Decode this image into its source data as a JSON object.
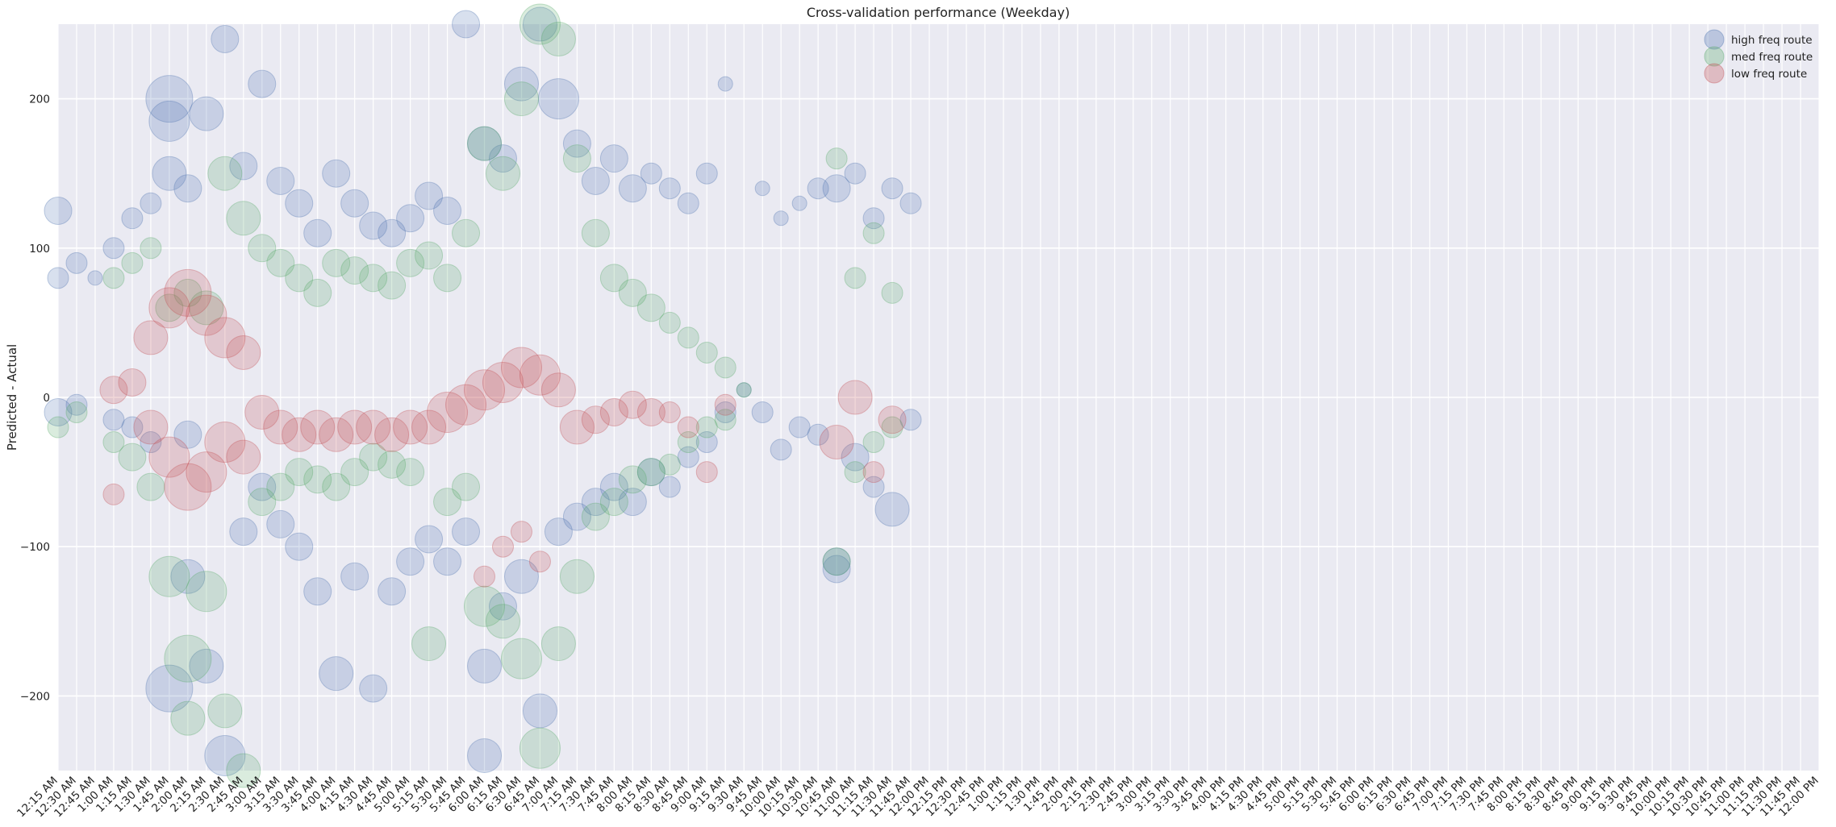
{
  "chart_data": {
    "type": "scatter",
    "title": "Cross-validation performance (Weekday)",
    "xlabel": "",
    "ylabel": "Predicted - Actual",
    "ylim": [
      -250,
      250
    ],
    "yticks": [
      -200,
      -100,
      0,
      100,
      200
    ],
    "grid": true,
    "legend_position": "top-right",
    "x_categories": [
      "12:15 AM",
      "12:30 AM",
      "12:45 AM",
      "1:00 AM",
      "1:15 AM",
      "1:30 AM",
      "1:45 AM",
      "2:00 AM",
      "2:15 AM",
      "2:30 AM",
      "2:45 AM",
      "3:00 AM",
      "3:15 AM",
      "3:30 AM",
      "3:45 AM",
      "4:00 AM",
      "4:15 AM",
      "4:30 AM",
      "4:45 AM",
      "5:00 AM",
      "5:15 AM",
      "5:30 AM",
      "5:45 AM",
      "6:00 AM",
      "6:15 AM",
      "6:30 AM",
      "6:45 AM",
      "7:00 AM",
      "7:15 AM",
      "7:30 AM",
      "7:45 AM",
      "8:00 AM",
      "8:15 AM",
      "8:30 AM",
      "8:45 AM",
      "9:00 AM",
      "9:15 AM",
      "9:30 AM",
      "9:45 AM",
      "10:00 AM",
      "10:15 AM",
      "10:30 AM",
      "10:45 AM",
      "11:00 AM",
      "11:15 AM",
      "11:30 AM",
      "11:45 AM",
      "12:00 PM",
      "12:15 PM",
      "12:30 PM",
      "12:45 PM",
      "1:00 PM",
      "1:15 PM",
      "1:30 PM",
      "1:45 PM",
      "2:00 PM",
      "2:15 PM",
      "2:30 PM",
      "2:45 PM",
      "3:00 PM",
      "3:15 PM",
      "3:30 PM",
      "3:45 PM",
      "4:00 PM",
      "4:15 PM",
      "4:30 PM",
      "4:45 PM",
      "5:00 PM",
      "5:15 PM",
      "5:30 PM",
      "5:45 PM",
      "6:00 PM",
      "6:15 PM",
      "6:30 PM",
      "6:45 PM",
      "7:00 PM",
      "7:15 PM",
      "7:30 PM",
      "7:45 PM",
      "8:00 PM",
      "8:15 PM",
      "8:30 PM",
      "8:45 PM",
      "9:00 PM",
      "9:15 PM",
      "9:30 PM",
      "9:45 PM",
      "10:00 PM",
      "10:15 PM",
      "10:30 PM",
      "10:45 PM",
      "11:00 PM",
      "11:15 PM",
      "11:30 PM",
      "11:45 PM",
      "12:00 PM"
    ],
    "series": [
      {
        "name": "high freq route",
        "color": "#4c72b0",
        "x_index": [
          0,
          0,
          0,
          1,
          1,
          2,
          3,
          3,
          4,
          4,
          5,
          5,
          6,
          6,
          6,
          6,
          7,
          7,
          7,
          8,
          8,
          9,
          9,
          10,
          10,
          11,
          11,
          12,
          12,
          13,
          13,
          14,
          14,
          15,
          15,
          16,
          16,
          17,
          17,
          18,
          18,
          19,
          19,
          20,
          20,
          21,
          21,
          22,
          22,
          23,
          23,
          23,
          24,
          24,
          25,
          25,
          26,
          26,
          27,
          27,
          28,
          28,
          29,
          29,
          30,
          30,
          31,
          31,
          32,
          32,
          33,
          33,
          34,
          34,
          35,
          35,
          36,
          36,
          37,
          38,
          38,
          39,
          39,
          40,
          40,
          41,
          41,
          42,
          42,
          42,
          43,
          43,
          44,
          44,
          45,
          45,
          46,
          46
        ],
        "y": [
          125,
          80,
          -10,
          90,
          -5,
          80,
          100,
          -15,
          120,
          -20,
          130,
          -30,
          200,
          185,
          150,
          -195,
          140,
          -25,
          -120,
          190,
          -180,
          240,
          -240,
          155,
          -90,
          210,
          -60,
          145,
          -85,
          130,
          -100,
          110,
          -130,
          150,
          -185,
          130,
          -120,
          115,
          -195,
          110,
          -130,
          120,
          -110,
          135,
          -95,
          125,
          -110,
          250,
          -90,
          170,
          -180,
          -240,
          160,
          -140,
          210,
          -120,
          250,
          -210,
          200,
          -90,
          170,
          -80,
          145,
          -70,
          160,
          -60,
          140,
          -70,
          150,
          -50,
          140,
          -60,
          130,
          -40,
          150,
          -30,
          210,
          -10,
          5,
          140,
          -10,
          120,
          -35,
          130,
          -20,
          140,
          -25,
          140,
          -110,
          -115,
          150,
          -40,
          120,
          -60,
          140,
          -75,
          130,
          -15
        ],
        "size": [
          3,
          2,
          3,
          2,
          2,
          1,
          2,
          2,
          2,
          2,
          2,
          2,
          6,
          5,
          4,
          6,
          3,
          3,
          4,
          4,
          4,
          3,
          5,
          3,
          3,
          3,
          3,
          3,
          3,
          3,
          3,
          3,
          3,
          3,
          4,
          3,
          3,
          3,
          3,
          3,
          3,
          3,
          3,
          3,
          3,
          3,
          3,
          3,
          3,
          4,
          4,
          4,
          3,
          3,
          4,
          4,
          4,
          4,
          5,
          3,
          3,
          3,
          3,
          3,
          3,
          3,
          3,
          3,
          2,
          3,
          2,
          2,
          2,
          2,
          2,
          2,
          1,
          2,
          1,
          1,
          2,
          1,
          2,
          1,
          2,
          2,
          2,
          3,
          3,
          3,
          2,
          3,
          2,
          2,
          2,
          4,
          2,
          2
        ]
      },
      {
        "name": "med freq route",
        "color": "#55a868",
        "x_index": [
          0,
          1,
          3,
          3,
          4,
          4,
          5,
          5,
          6,
          6,
          7,
          7,
          7,
          8,
          8,
          9,
          9,
          10,
          10,
          11,
          11,
          12,
          12,
          13,
          13,
          14,
          14,
          15,
          15,
          16,
          16,
          17,
          17,
          18,
          18,
          19,
          19,
          20,
          20,
          21,
          21,
          22,
          22,
          23,
          23,
          24,
          24,
          25,
          25,
          26,
          26,
          27,
          27,
          28,
          28,
          29,
          29,
          30,
          30,
          31,
          31,
          32,
          32,
          33,
          33,
          34,
          34,
          35,
          35,
          36,
          36,
          37,
          42,
          42,
          43,
          43,
          44,
          44,
          45,
          45
        ],
        "y": [
          -20,
          -10,
          80,
          -30,
          90,
          -40,
          100,
          -60,
          60,
          -120,
          70,
          -175,
          -215,
          60,
          -130,
          150,
          -210,
          120,
          -250,
          100,
          -70,
          90,
          -60,
          80,
          -50,
          70,
          -55,
          90,
          -60,
          85,
          -50,
          80,
          -40,
          75,
          -45,
          90,
          -50,
          95,
          -165,
          80,
          -70,
          110,
          -60,
          170,
          -140,
          150,
          -150,
          200,
          -175,
          250,
          -235,
          240,
          -165,
          160,
          -120,
          110,
          -80,
          80,
          -70,
          70,
          -55,
          60,
          -50,
          50,
          -45,
          40,
          -30,
          30,
          -20,
          20,
          -15,
          5,
          160,
          -110,
          80,
          -50,
          110,
          -30,
          70,
          -20
        ],
        "size": [
          2,
          2,
          2,
          2,
          2,
          3,
          2,
          3,
          3,
          5,
          3,
          6,
          4,
          4,
          5,
          4,
          4,
          4,
          4,
          3,
          3,
          3,
          3,
          3,
          3,
          3,
          3,
          3,
          3,
          3,
          3,
          3,
          3,
          3,
          3,
          3,
          3,
          3,
          4,
          3,
          3,
          3,
          3,
          4,
          5,
          4,
          4,
          4,
          5,
          5,
          5,
          4,
          4,
          3,
          4,
          3,
          3,
          3,
          3,
          3,
          3,
          3,
          3,
          2,
          2,
          2,
          2,
          2,
          2,
          2,
          2,
          1,
          2,
          3,
          2,
          2,
          2,
          2,
          2,
          2
        ]
      },
      {
        "name": "low freq route",
        "color": "#c44e52",
        "x_index": [
          3,
          3,
          4,
          5,
          5,
          6,
          6,
          7,
          7,
          8,
          8,
          9,
          9,
          10,
          10,
          11,
          12,
          13,
          14,
          15,
          16,
          17,
          18,
          19,
          20,
          21,
          22,
          23,
          23,
          24,
          24,
          25,
          25,
          26,
          26,
          27,
          28,
          29,
          30,
          31,
          32,
          33,
          34,
          35,
          36,
          42,
          43,
          44,
          45
        ],
        "y": [
          -65,
          5,
          10,
          40,
          -20,
          60,
          -40,
          70,
          -60,
          55,
          -50,
          40,
          -30,
          30,
          -40,
          -10,
          -20,
          -25,
          -20,
          -25,
          -20,
          -20,
          -25,
          -20,
          -20,
          -10,
          -5,
          5,
          -120,
          10,
          -100,
          20,
          -90,
          15,
          -110,
          5,
          -20,
          -15,
          -10,
          -5,
          -10,
          -10,
          -20,
          -50,
          -5,
          -30,
          0,
          -50,
          -15
        ],
        "size": [
          2,
          3,
          3,
          4,
          4,
          5,
          5,
          6,
          6,
          5,
          5,
          5,
          5,
          4,
          4,
          4,
          4,
          4,
          4,
          4,
          4,
          4,
          4,
          4,
          4,
          5,
          5,
          5,
          2,
          5,
          2,
          5,
          2,
          5,
          2,
          4,
          4,
          3,
          3,
          3,
          3,
          2,
          2,
          2,
          2,
          4,
          4,
          2,
          3
        ]
      }
    ]
  }
}
